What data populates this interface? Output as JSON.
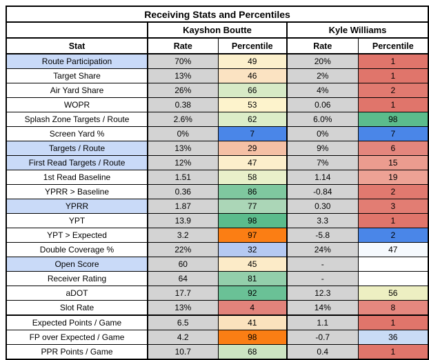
{
  "colors": {
    "rate_bg": "#d3d3d3",
    "stat_highlight_bg": "#c9daf8",
    "border": "#000000",
    "strong_blue": "#4a86e8",
    "strong_orange": "#fb7e14",
    "strong_green": "#5bbc8c",
    "strong_red": "#e0756b"
  },
  "chart_data": {
    "type": "table",
    "title": "Receiving Stats and Percentiles",
    "column_groups": [
      "",
      "Kayshon Boutte",
      "Kyle Williams"
    ],
    "columns": [
      "Stat",
      "Rate",
      "Percentile",
      "Rate",
      "Percentile"
    ],
    "rows": [
      {
        "stat": "Route Participation",
        "highlight": true,
        "section_start": false,
        "kb_rate": "70%",
        "kb_pct": "49",
        "kb_pct_bg": "#fcf0cc",
        "kw_rate": "20%",
        "kw_pct": "1",
        "kw_pct_bg": "#e0756b"
      },
      {
        "stat": "Target Share",
        "highlight": false,
        "section_start": false,
        "kb_rate": "13%",
        "kb_pct": "46",
        "kb_pct_bg": "#fbe3c2",
        "kw_rate": "2%",
        "kw_pct": "1",
        "kw_pct_bg": "#e0756b"
      },
      {
        "stat": "Air Yard Share",
        "highlight": false,
        "section_start": false,
        "kb_rate": "26%",
        "kb_pct": "66",
        "kb_pct_bg": "#d7eac6",
        "kw_rate": "4%",
        "kw_pct": "2",
        "kw_pct_bg": "#e17a70"
      },
      {
        "stat": "WOPR",
        "highlight": false,
        "section_start": false,
        "kb_rate": "0.38",
        "kb_pct": "53",
        "kb_pct_bg": "#fdf3cc",
        "kw_rate": "0.06",
        "kw_pct": "1",
        "kw_pct_bg": "#e0756b"
      },
      {
        "stat": "Splash Zone Targets / Route",
        "highlight": false,
        "section_start": false,
        "kb_rate": "2.6%",
        "kb_pct": "62",
        "kb_pct_bg": "#dcedc8",
        "kw_rate": "6.0%",
        "kw_pct": "98",
        "kw_pct_bg": "#5bbc8c"
      },
      {
        "stat": "Screen Yard %",
        "highlight": false,
        "section_start": false,
        "kb_rate": "0%",
        "kb_pct": "7",
        "kb_pct_bg": "#4a86e8",
        "kw_rate": "0%",
        "kw_pct": "7",
        "kw_pct_bg": "#4a86e8"
      },
      {
        "stat": "Targets / Route",
        "highlight": true,
        "section_start": false,
        "kb_rate": "13%",
        "kb_pct": "29",
        "kb_pct_bg": "#f5c0a5",
        "kw_rate": "9%",
        "kw_pct": "6",
        "kw_pct_bg": "#e4867d"
      },
      {
        "stat": "First Read Targets / Route",
        "highlight": true,
        "section_start": false,
        "kb_rate": "12%",
        "kb_pct": "47",
        "kb_pct_bg": "#fceecb",
        "kw_rate": "7%",
        "kw_pct": "15",
        "kw_pct_bg": "#eb9c8f"
      },
      {
        "stat": "1st Read Baseline",
        "highlight": false,
        "section_start": false,
        "kb_rate": "1.51",
        "kb_pct": "58",
        "kb_pct_bg": "#e9f0ca",
        "kw_rate": "1.14",
        "kw_pct": "19",
        "kw_pct_bg": "#eda295"
      },
      {
        "stat": "YPRR > Baseline",
        "highlight": false,
        "section_start": false,
        "kb_rate": "0.36",
        "kb_pct": "86",
        "kb_pct_bg": "#7fc89f",
        "kw_rate": "-0.84",
        "kw_pct": "2",
        "kw_pct_bg": "#e1796f"
      },
      {
        "stat": "YPRR",
        "highlight": true,
        "section_start": false,
        "kb_rate": "1.87",
        "kb_pct": "77",
        "kb_pct_bg": "#abd6b7",
        "kw_rate": "0.30",
        "kw_pct": "3",
        "kw_pct_bg": "#e27d73"
      },
      {
        "stat": "YPT",
        "highlight": false,
        "section_start": false,
        "kb_rate": "13.9",
        "kb_pct": "98",
        "kb_pct_bg": "#5bbc8c",
        "kw_rate": "3.3",
        "kw_pct": "1",
        "kw_pct_bg": "#e0756b"
      },
      {
        "stat": "YPT > Expected",
        "highlight": false,
        "section_start": false,
        "kb_rate": "3.2",
        "kb_pct": "97",
        "kb_pct_bg": "#fb7e14",
        "kw_rate": "-5.8",
        "kw_pct": "2",
        "kw_pct_bg": "#4a86e8"
      },
      {
        "stat": "Double Coverage %",
        "highlight": false,
        "section_start": false,
        "kb_rate": "22%",
        "kb_pct": "32",
        "kb_pct_bg": "#b5c9f1",
        "kw_rate": "24%",
        "kw_pct": "47",
        "kw_pct_bg": "#f5f9fd"
      },
      {
        "stat": "Open Score",
        "highlight": true,
        "section_start": false,
        "kb_rate": "60",
        "kb_pct": "45",
        "kb_pct_bg": "#fcebc8",
        "kw_rate": "-",
        "kw_pct": "",
        "kw_pct_bg": "#ffffff"
      },
      {
        "stat": "Receiver Rating",
        "highlight": false,
        "section_start": false,
        "kb_rate": "64",
        "kb_pct": "81",
        "kb_pct_bg": "#93cfab",
        "kw_rate": "-",
        "kw_pct": "",
        "kw_pct_bg": "#ffffff"
      },
      {
        "stat": "aDOT",
        "highlight": false,
        "section_start": false,
        "kb_rate": "17.7",
        "kb_pct": "92",
        "kb_pct_bg": "#6ac196",
        "kw_rate": "12.3",
        "kw_pct": "56",
        "kw_pct_bg": "#edefc2"
      },
      {
        "stat": "Slot Rate",
        "highlight": false,
        "section_start": false,
        "kb_rate": "13%",
        "kb_pct": "4",
        "kb_pct_bg": "#e2837b",
        "kw_rate": "14%",
        "kw_pct": "8",
        "kw_pct_bg": "#e5887f"
      },
      {
        "stat": "Expected Points / Game",
        "highlight": false,
        "section_start": true,
        "kb_rate": "6.5",
        "kb_pct": "41",
        "kb_pct_bg": "#fbe2bd",
        "kw_rate": "1.1",
        "kw_pct": "1",
        "kw_pct_bg": "#e0756b"
      },
      {
        "stat": "FP over Expected / Game",
        "highlight": false,
        "section_start": false,
        "kb_rate": "4.2",
        "kb_pct": "98",
        "kb_pct_bg": "#fb7e14",
        "kw_rate": "-0.7",
        "kw_pct": "36",
        "kw_pct_bg": "#c9dbf5"
      },
      {
        "stat": "PPR Points / Game",
        "highlight": false,
        "section_start": false,
        "kb_rate": "10.7",
        "kb_pct": "68",
        "kb_pct_bg": "#cce4c2",
        "kw_rate": "0.4",
        "kw_pct": "1",
        "kw_pct_bg": "#e0756b"
      }
    ]
  }
}
